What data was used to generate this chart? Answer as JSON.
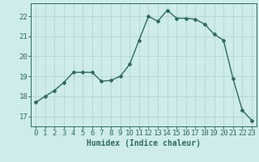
{
  "x": [
    0,
    1,
    2,
    3,
    4,
    5,
    6,
    7,
    8,
    9,
    10,
    11,
    12,
    13,
    14,
    15,
    16,
    17,
    18,
    19,
    20,
    21,
    22,
    23
  ],
  "y": [
    17.7,
    18.0,
    18.3,
    18.7,
    19.2,
    19.2,
    19.2,
    18.75,
    18.8,
    19.0,
    19.6,
    20.8,
    22.0,
    21.75,
    22.3,
    21.9,
    21.9,
    21.85,
    21.6,
    21.1,
    20.8,
    18.9,
    17.3,
    16.8
  ],
  "line_color": "#2e6b5e",
  "marker": "D",
  "marker_size": 2.0,
  "xlabel": "Humidex (Indice chaleur)",
  "xlabel_fontsize": 7,
  "ylabel_ticks": [
    17,
    18,
    19,
    20,
    21,
    22
  ],
  "xlim": [
    -0.5,
    23.5
  ],
  "ylim": [
    16.5,
    22.65
  ],
  "bg_color": "#ceecea",
  "grid_color": "#b8d8d4",
  "tick_color": "#2e6b5e",
  "label_color": "#2e6b5e",
  "tick_fontsize": 6.5,
  "linewidth": 1.0
}
